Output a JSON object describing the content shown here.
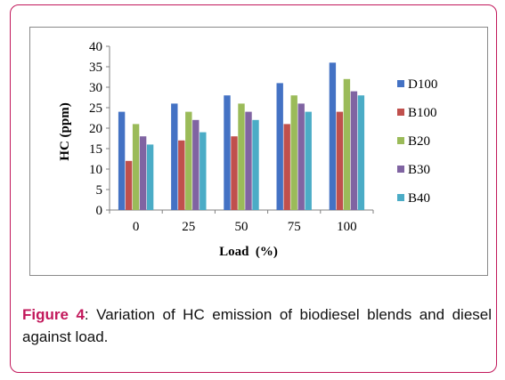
{
  "chart_data": {
    "type": "bar",
    "title": "",
    "xlabel": "Load  (%)",
    "ylabel": "HC (ppm)",
    "categories": [
      "0",
      "25",
      "50",
      "75",
      "100"
    ],
    "ylim": [
      0,
      40
    ],
    "yticks": [
      0,
      5,
      10,
      15,
      20,
      25,
      30,
      35,
      40
    ],
    "grid": false,
    "legend_position": "right",
    "series": [
      {
        "name": "D100",
        "color": "#4472c4",
        "values": [
          24,
          26,
          28,
          31,
          36
        ]
      },
      {
        "name": "B100",
        "color": "#c0504d",
        "values": [
          12,
          17,
          18,
          21,
          24
        ]
      },
      {
        "name": "B20",
        "color": "#9bbb59",
        "values": [
          21,
          24,
          26,
          28,
          32
        ]
      },
      {
        "name": "B30",
        "color": "#8064a2",
        "values": [
          18,
          22,
          24,
          26,
          29
        ]
      },
      {
        "name": "B40",
        "color": "#4bacc6",
        "values": [
          16,
          19,
          22,
          24,
          28
        ]
      }
    ]
  },
  "caption": {
    "label": "Figure 4",
    "text": ": Variation of HC emission of biodiesel blends and diesel against load."
  },
  "colors": {
    "frame_border": "#c2185b",
    "axis": "#808080"
  }
}
